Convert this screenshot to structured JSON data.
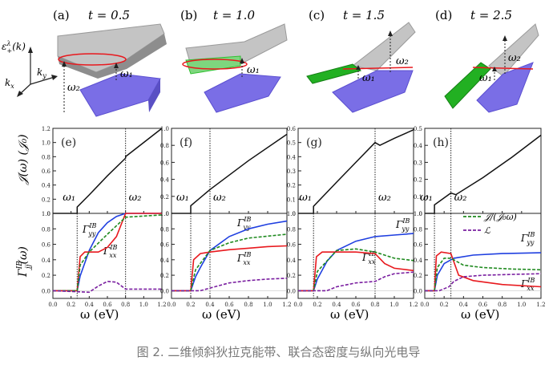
{
  "figure": {
    "caption": "图 2. 二维倾斜狄拉克能带、联合态密度与纵向光电导",
    "band_axes": {
      "energy": "ε",
      "energy_sup": "λ",
      "energy_sub": "+",
      "energy_arg": "(k)",
      "ky": "k",
      "ky_sub": "y",
      "kx": "k",
      "kx_sub": "x"
    },
    "omega1": "ω₁",
    "omega2": "ω₂",
    "ylabel_top": "𝒥(ω)  (𝒥₀)",
    "ylabel_bottom": "Γ",
    "ylabel_bottom_sup": "IB",
    "ylabel_bottom_sub": "jj",
    "ylabel_bottom_arg": "(ω)",
    "xlabel": "ω  (eV)",
    "gyy": "Γ",
    "gyy_sub": "yy",
    "gxx": "Γ",
    "gxx_sub": "xx",
    "sup_ib": "IB",
    "legend_j": "𝒥/(𝒥₀ω)",
    "legend_l": "ℒ",
    "colors": {
      "yy": "#1f3fe0",
      "xx": "#e8191e",
      "j": "#1f8a1f",
      "l": "#7a1fa0",
      "gray": "#8d8d8d",
      "purple": "#7a6ee6",
      "green": "#2fbf2f"
    }
  },
  "chart_data": [
    {
      "panel": "a",
      "type": "surface",
      "title_letter": "(a)",
      "t_label": "t = 0.5",
      "t": 0.5
    },
    {
      "panel": "b",
      "type": "surface",
      "title_letter": "(b)",
      "t_label": "t = 1.0",
      "t": 1.0
    },
    {
      "panel": "c",
      "type": "surface",
      "title_letter": "(c)",
      "t_label": "t = 1.5",
      "t": 1.5
    },
    {
      "panel": "d",
      "type": "surface",
      "title_letter": "(d)",
      "t_label": "t = 2.5",
      "t": 2.5
    },
    {
      "panel": "e",
      "type": "line",
      "title_letter": "(e)",
      "xlim": [
        0,
        1.2
      ],
      "ylim": [
        0,
        1.2
      ],
      "yticks": [
        "0",
        "0.2",
        "0.4",
        "0.6",
        "0.8",
        "1.0",
        "1.2"
      ],
      "w1": 0.267,
      "w2": 0.8,
      "J": [
        [
          0,
          0
        ],
        [
          0.267,
          0
        ],
        [
          0.267,
          0.09
        ],
        [
          0.4,
          0.26
        ],
        [
          0.6,
          0.53
        ],
        [
          0.8,
          0.78
        ],
        [
          0.8,
          0.8
        ],
        [
          1.2,
          1.2
        ]
      ]
    },
    {
      "panel": "f",
      "type": "line",
      "title_letter": "(f)",
      "xlim": [
        0,
        1.2
      ],
      "ylim": [
        0,
        1.0
      ],
      "yticks": [
        "0",
        "0.2",
        "0.4",
        "0.6",
        "0.8",
        "1.0"
      ],
      "w1": 0.2,
      "w2": 0.4,
      "J": [
        [
          0,
          0
        ],
        [
          0.2,
          0
        ],
        [
          0.2,
          0.09
        ],
        [
          0.4,
          0.28
        ],
        [
          0.8,
          0.62
        ],
        [
          1.2,
          0.93
        ]
      ]
    },
    {
      "panel": "g",
      "type": "line",
      "title_letter": "(g)",
      "xlim": [
        0,
        1.2
      ],
      "ylim": [
        0,
        0.6
      ],
      "yticks": [
        "0",
        "0.1",
        "0.2",
        "0.3",
        "0.4",
        "0.5",
        "0.6"
      ],
      "w1": 0.16,
      "w2": 0.8,
      "J": [
        [
          0,
          0
        ],
        [
          0.16,
          0
        ],
        [
          0.16,
          0.05
        ],
        [
          0.4,
          0.22
        ],
        [
          0.6,
          0.36
        ],
        [
          0.8,
          0.5
        ],
        [
          0.85,
          0.48
        ],
        [
          1.0,
          0.53
        ],
        [
          1.2,
          0.59
        ]
      ]
    },
    {
      "panel": "h",
      "type": "line",
      "title_letter": "(h)",
      "xlim": [
        0,
        1.2
      ],
      "ylim": [
        0,
        0.5
      ],
      "yticks": [
        "0",
        "0.1",
        "0.2",
        "0.3",
        "0.4",
        "0.5"
      ],
      "w1": 0.1,
      "w2": 0.27,
      "J": [
        [
          0,
          0
        ],
        [
          0.1,
          0
        ],
        [
          0.1,
          0.05
        ],
        [
          0.27,
          0.12
        ],
        [
          0.32,
          0.11
        ],
        [
          0.6,
          0.21
        ],
        [
          0.9,
          0.33
        ],
        [
          1.2,
          0.46
        ]
      ]
    },
    {
      "panel": "e2",
      "type": "line",
      "xlim": [
        0,
        1.2
      ],
      "ylim": [
        -0.1,
        1.0
      ],
      "yticks": [
        "0.0",
        "0.2",
        "0.4",
        "0.6",
        "0.8",
        "1.0"
      ],
      "xticks": [
        "0.0",
        "0.2",
        "0.4",
        "0.6",
        "0.8",
        "1.0",
        "1.2"
      ],
      "w1": 0.267,
      "w2": 0.8,
      "series": [
        {
          "name": "Γyy",
          "points": [
            [
              0,
              0
            ],
            [
              0.267,
              0
            ],
            [
              0.3,
              0.19
            ],
            [
              0.4,
              0.52
            ],
            [
              0.5,
              0.75
            ],
            [
              0.6,
              0.88
            ],
            [
              0.7,
              0.96
            ],
            [
              0.8,
              1.0
            ],
            [
              1.2,
              1.0
            ]
          ]
        },
        {
          "name": "Γxx",
          "points": [
            [
              0,
              0
            ],
            [
              0.267,
              0
            ],
            [
              0.3,
              0.44
            ],
            [
              0.35,
              0.5
            ],
            [
              0.5,
              0.5
            ],
            [
              0.6,
              0.56
            ],
            [
              0.7,
              0.7
            ],
            [
              0.8,
              1.0
            ],
            [
              1.2,
              1.0
            ]
          ]
        },
        {
          "name": "J/(J0ω)",
          "points": [
            [
              0,
              0
            ],
            [
              0.267,
              0
            ],
            [
              0.3,
              0.33
            ],
            [
              0.4,
              0.5
            ],
            [
              0.6,
              0.73
            ],
            [
              0.8,
              0.95
            ],
            [
              1.2,
              0.98
            ]
          ]
        },
        {
          "name": "L",
          "points": [
            [
              0,
              0
            ],
            [
              0.4,
              -0.02
            ],
            [
              0.5,
              0.06
            ],
            [
              0.6,
              0.12
            ],
            [
              0.7,
              0.11
            ],
            [
              0.8,
              0.02
            ],
            [
              1.2,
              0.02
            ]
          ]
        }
      ]
    },
    {
      "panel": "f2",
      "type": "line",
      "xlim": [
        0,
        1.2
      ],
      "ylim": [
        -0.1,
        1.0
      ],
      "yticks": [
        "0.0",
        "0.2",
        "0.4",
        "0.6",
        "0.8",
        "1.0"
      ],
      "xticks": [
        "0.0",
        "0.2",
        "0.4",
        "0.6",
        "0.8",
        "1.0",
        "1.2"
      ],
      "w1": 0.2,
      "w2": 0.4,
      "series": [
        {
          "name": "Γyy",
          "points": [
            [
              0,
              0
            ],
            [
              0.2,
              0
            ],
            [
              0.25,
              0.18
            ],
            [
              0.3,
              0.3
            ],
            [
              0.4,
              0.52
            ],
            [
              0.6,
              0.7
            ],
            [
              0.8,
              0.8
            ],
            [
              1.0,
              0.86
            ],
            [
              1.2,
              0.9
            ]
          ]
        },
        {
          "name": "Γxx",
          "points": [
            [
              0,
              0
            ],
            [
              0.2,
              0
            ],
            [
              0.23,
              0.4
            ],
            [
              0.3,
              0.48
            ],
            [
              0.4,
              0.5
            ],
            [
              0.6,
              0.53
            ],
            [
              0.8,
              0.55
            ],
            [
              1.0,
              0.57
            ],
            [
              1.2,
              0.58
            ]
          ]
        },
        {
          "name": "J/(J0ω)",
          "points": [
            [
              0,
              0
            ],
            [
              0.2,
              0
            ],
            [
              0.25,
              0.27
            ],
            [
              0.4,
              0.52
            ],
            [
              0.6,
              0.62
            ],
            [
              0.8,
              0.68
            ],
            [
              1.2,
              0.73
            ]
          ]
        },
        {
          "name": "L",
          "points": [
            [
              0,
              0
            ],
            [
              0.3,
              0.0
            ],
            [
              0.45,
              0.05
            ],
            [
              0.6,
              0.1
            ],
            [
              0.8,
              0.13
            ],
            [
              1.0,
              0.15
            ],
            [
              1.2,
              0.16
            ]
          ]
        }
      ]
    },
    {
      "panel": "g2",
      "type": "line",
      "xlim": [
        0,
        1.2
      ],
      "ylim": [
        -0.1,
        1.0
      ],
      "yticks": [
        "0.0",
        "0.2",
        "0.4",
        "0.6",
        "0.8",
        "1.0"
      ],
      "xticks": [
        "0.0",
        "0.2",
        "0.4",
        "0.6",
        "0.8",
        "1.0",
        "1.2"
      ],
      "w1": 0.16,
      "w2": 0.8,
      "series": [
        {
          "name": "Γyy",
          "points": [
            [
              0,
              0
            ],
            [
              0.16,
              0
            ],
            [
              0.2,
              0.15
            ],
            [
              0.3,
              0.38
            ],
            [
              0.4,
              0.52
            ],
            [
              0.6,
              0.64
            ],
            [
              0.8,
              0.7
            ],
            [
              1.0,
              0.72
            ],
            [
              1.2,
              0.74
            ]
          ]
        },
        {
          "name": "Γxx",
          "points": [
            [
              0,
              0
            ],
            [
              0.16,
              0
            ],
            [
              0.19,
              0.44
            ],
            [
              0.25,
              0.5
            ],
            [
              0.6,
              0.5
            ],
            [
              0.8,
              0.48
            ],
            [
              0.9,
              0.35
            ],
            [
              1.0,
              0.29
            ],
            [
              1.2,
              0.26
            ]
          ]
        },
        {
          "name": "J/(J0ω)",
          "points": [
            [
              0,
              0
            ],
            [
              0.16,
              0
            ],
            [
              0.2,
              0.25
            ],
            [
              0.4,
              0.52
            ],
            [
              0.6,
              0.54
            ],
            [
              0.8,
              0.5
            ],
            [
              1.0,
              0.42
            ],
            [
              1.2,
              0.39
            ]
          ]
        },
        {
          "name": "L",
          "points": [
            [
              0,
              0
            ],
            [
              0.3,
              0.0
            ],
            [
              0.4,
              0.05
            ],
            [
              0.6,
              0.1
            ],
            [
              0.8,
              0.12
            ],
            [
              0.9,
              0.18
            ],
            [
              1.0,
              0.22
            ],
            [
              1.2,
              0.24
            ]
          ]
        }
      ]
    },
    {
      "panel": "h2",
      "type": "line",
      "xlim": [
        0,
        1.2
      ],
      "ylim": [
        -0.1,
        1.0
      ],
      "yticks": [
        "0.0",
        "0.2",
        "0.4",
        "0.6",
        "0.8",
        "1.0"
      ],
      "xticks": [
        "0.0",
        "0.2",
        "0.4",
        "0.6",
        "0.8",
        "1.0",
        "1.2"
      ],
      "w1": 0.1,
      "w2": 0.27,
      "series": [
        {
          "name": "Γyy",
          "points": [
            [
              0,
              0
            ],
            [
              0.1,
              0
            ],
            [
              0.13,
              0.2
            ],
            [
              0.2,
              0.35
            ],
            [
              0.3,
              0.42
            ],
            [
              0.5,
              0.46
            ],
            [
              0.8,
              0.48
            ],
            [
              1.2,
              0.49
            ]
          ]
        },
        {
          "name": "Γxx",
          "points": [
            [
              0,
              0
            ],
            [
              0.1,
              0
            ],
            [
              0.12,
              0.45
            ],
            [
              0.17,
              0.5
            ],
            [
              0.27,
              0.48
            ],
            [
              0.35,
              0.2
            ],
            [
              0.5,
              0.13
            ],
            [
              0.8,
              0.08
            ],
            [
              1.2,
              0.05
            ]
          ]
        },
        {
          "name": "J/(J0ω)",
          "points": [
            [
              0,
              0
            ],
            [
              0.1,
              0
            ],
            [
              0.13,
              0.3
            ],
            [
              0.2,
              0.42
            ],
            [
              0.27,
              0.42
            ],
            [
              0.4,
              0.33
            ],
            [
              0.6,
              0.3
            ],
            [
              0.9,
              0.28
            ],
            [
              1.2,
              0.27
            ]
          ]
        },
        {
          "name": "L",
          "points": [
            [
              0,
              0
            ],
            [
              0.15,
              0.0
            ],
            [
              0.25,
              0.05
            ],
            [
              0.3,
              0.12
            ],
            [
              0.4,
              0.18
            ],
            [
              0.6,
              0.2
            ],
            [
              0.9,
              0.21
            ],
            [
              1.2,
              0.22
            ]
          ]
        }
      ]
    }
  ]
}
